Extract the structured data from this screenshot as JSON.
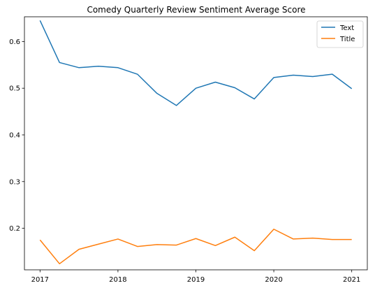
{
  "chart_data": {
    "type": "line",
    "title": "Comedy Quarterly Review Sentiment Average Score",
    "xlabel": "",
    "ylabel": "",
    "x": [
      2017.0,
      2017.25,
      2017.5,
      2017.75,
      2018.0,
      2018.25,
      2018.5,
      2018.75,
      2019.0,
      2019.25,
      2019.5,
      2019.75,
      2020.0,
      2020.25,
      2020.5,
      2020.75,
      2021.0
    ],
    "xticks": [
      2017,
      2018,
      2019,
      2020,
      2021
    ],
    "xtick_labels": [
      "2017",
      "2018",
      "2019",
      "2020",
      "2021"
    ],
    "yticks": [
      0.2,
      0.3,
      0.4,
      0.5,
      0.6
    ],
    "ytick_labels": [
      "0.2",
      "0.3",
      "0.4",
      "0.5",
      "0.6"
    ],
    "xlim": [
      2016.8,
      2021.2
    ],
    "ylim": [
      0.111,
      0.653
    ],
    "grid": false,
    "legend_position": "top-right",
    "series": [
      {
        "name": "Text",
        "color": "#1f77b4",
        "values": [
          0.645,
          0.555,
          0.544,
          0.547,
          0.544,
          0.53,
          0.489,
          0.463,
          0.5,
          0.513,
          0.501,
          0.477,
          0.523,
          0.528,
          0.525,
          0.53,
          0.499
        ]
      },
      {
        "name": "Title",
        "color": "#ff7f0e",
        "values": [
          0.175,
          0.124,
          0.155,
          0.166,
          0.177,
          0.161,
          0.165,
          0.164,
          0.178,
          0.163,
          0.181,
          0.152,
          0.198,
          0.177,
          0.179,
          0.176,
          0.176
        ]
      }
    ]
  }
}
